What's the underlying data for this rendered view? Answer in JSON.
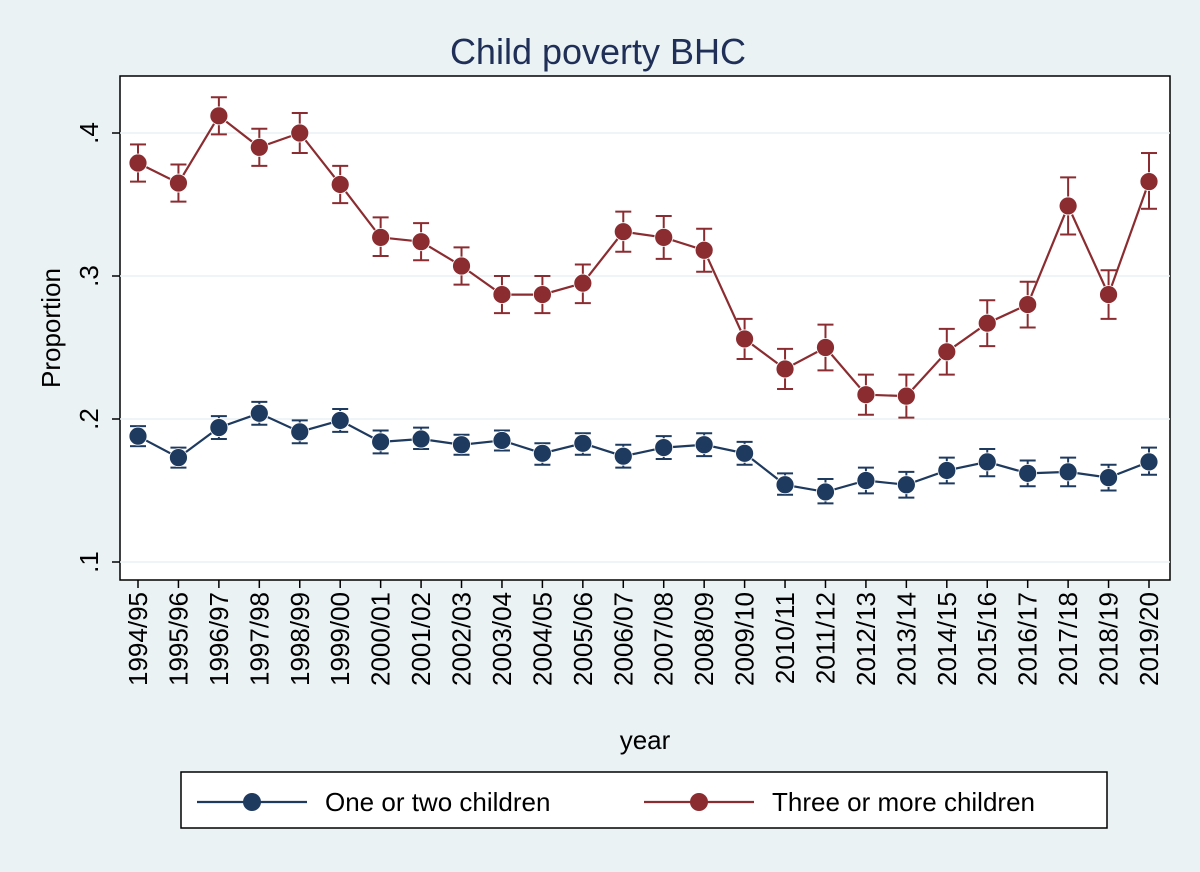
{
  "chart_data": {
    "type": "line",
    "title": "Child poverty BHC",
    "xlabel": "year",
    "ylabel": "Proportion",
    "ylim": [
      0.1,
      0.43
    ],
    "yticks": [
      0.1,
      0.2,
      0.3,
      0.4
    ],
    "ytick_labels": [
      ".1",
      ".2",
      ".3",
      ".4"
    ],
    "grid": true,
    "legend_position": "bottom",
    "categories": [
      "1994/95",
      "1995/96",
      "1996/97",
      "1997/98",
      "1998/99",
      "1999/00",
      "2000/01",
      "2001/02",
      "2002/03",
      "2003/04",
      "2004/05",
      "2005/06",
      "2006/07",
      "2007/08",
      "2008/09",
      "2009/10",
      "2010/11",
      "2011/12",
      "2012/13",
      "2013/14",
      "2014/15",
      "2015/16",
      "2016/17",
      "2017/18",
      "2018/19",
      "2019/20"
    ],
    "series": [
      {
        "name": "One or two children",
        "color": "#1f3a5f",
        "values": [
          0.188,
          0.173,
          0.194,
          0.204,
          0.191,
          0.199,
          0.184,
          0.186,
          0.182,
          0.185,
          0.176,
          0.183,
          0.174,
          0.18,
          0.182,
          0.176,
          0.154,
          0.149,
          0.157,
          0.154,
          0.164,
          0.17,
          0.162,
          0.163,
          0.159,
          0.17
        ],
        "lower": [
          0.181,
          0.166,
          0.186,
          0.196,
          0.183,
          0.191,
          0.176,
          0.179,
          0.175,
          0.178,
          0.168,
          0.175,
          0.166,
          0.172,
          0.174,
          0.168,
          0.147,
          0.141,
          0.148,
          0.145,
          0.155,
          0.16,
          0.153,
          0.153,
          0.15,
          0.161
        ],
        "upper": [
          0.195,
          0.18,
          0.202,
          0.212,
          0.199,
          0.207,
          0.192,
          0.194,
          0.189,
          0.192,
          0.183,
          0.19,
          0.182,
          0.188,
          0.19,
          0.184,
          0.162,
          0.158,
          0.166,
          0.163,
          0.173,
          0.179,
          0.171,
          0.173,
          0.168,
          0.18
        ]
      },
      {
        "name": "Three or more children",
        "color": "#8b2c30",
        "values": [
          0.379,
          0.365,
          0.412,
          0.39,
          0.4,
          0.364,
          0.327,
          0.324,
          0.307,
          0.287,
          0.287,
          0.295,
          0.331,
          0.327,
          0.318,
          0.256,
          0.235,
          0.25,
          0.217,
          0.216,
          0.247,
          0.267,
          0.28,
          0.349,
          0.287,
          0.366
        ],
        "lower": [
          0.366,
          0.352,
          0.399,
          0.377,
          0.386,
          0.351,
          0.314,
          0.311,
          0.294,
          0.274,
          0.274,
          0.281,
          0.317,
          0.312,
          0.303,
          0.242,
          0.221,
          0.234,
          0.203,
          0.201,
          0.231,
          0.251,
          0.264,
          0.329,
          0.27,
          0.347
        ],
        "upper": [
          0.392,
          0.378,
          0.425,
          0.403,
          0.414,
          0.377,
          0.341,
          0.337,
          0.32,
          0.3,
          0.3,
          0.308,
          0.345,
          0.342,
          0.333,
          0.27,
          0.249,
          0.266,
          0.231,
          0.231,
          0.263,
          0.283,
          0.296,
          0.369,
          0.304,
          0.386
        ]
      }
    ]
  }
}
